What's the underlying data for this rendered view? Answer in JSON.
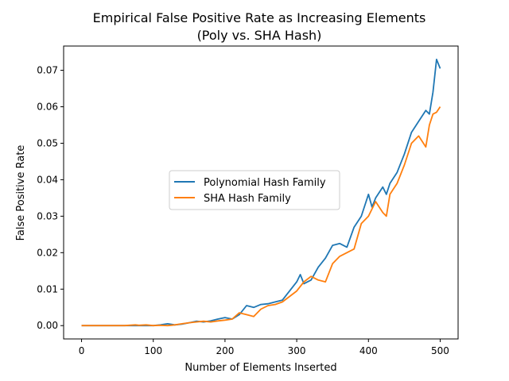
{
  "chart_data": {
    "type": "line",
    "title": "Empirical False Positive Rate as Increasing Elements",
    "subtitle": "(Poly vs. SHA Hash)",
    "xlabel": "Number of Elements Inserted",
    "ylabel": "False Positive Rate",
    "xlim": [
      -25,
      525
    ],
    "ylim": [
      -0.00365,
      0.07665
    ],
    "xticks": [
      0,
      100,
      200,
      300,
      400,
      500
    ],
    "xtick_labels": [
      "0",
      "100",
      "200",
      "300",
      "400",
      "500"
    ],
    "yticks": [
      0,
      0.01,
      0.02,
      0.03,
      0.04,
      0.05,
      0.06,
      0.07
    ],
    "ytick_labels": [
      "0.00",
      "0.01",
      "0.02",
      "0.03",
      "0.04",
      "0.05",
      "0.06",
      "0.07"
    ],
    "grid": false,
    "legend_position": "center-left",
    "series": [
      {
        "name": "Polynomial Hash Family",
        "color": "#1f77b4",
        "x": [
          0,
          20,
          40,
          60,
          80,
          100,
          110,
          120,
          130,
          140,
          150,
          160,
          170,
          180,
          190,
          200,
          210,
          220,
          230,
          240,
          250,
          260,
          270,
          280,
          290,
          300,
          305,
          310,
          320,
          330,
          340,
          350,
          360,
          370,
          380,
          390,
          400,
          405,
          410,
          420,
          425,
          430,
          440,
          450,
          460,
          470,
          480,
          485,
          490,
          495,
          500
        ],
        "y": [
          0,
          0,
          0,
          0,
          0,
          0,
          0.0002,
          0.0005,
          0.0002,
          0.0004,
          0.0008,
          0.0012,
          0.001,
          0.0013,
          0.0018,
          0.0022,
          0.0018,
          0.003,
          0.0055,
          0.005,
          0.0058,
          0.006,
          0.0065,
          0.007,
          0.0095,
          0.012,
          0.014,
          0.0115,
          0.0125,
          0.016,
          0.0185,
          0.022,
          0.0225,
          0.0215,
          0.027,
          0.03,
          0.036,
          0.0325,
          0.035,
          0.038,
          0.036,
          0.039,
          0.042,
          0.047,
          0.053,
          0.056,
          0.059,
          0.058,
          0.064,
          0.073,
          0.0705
        ]
      },
      {
        "name": "SHA Hash Family",
        "color": "#ff7f0e",
        "x": [
          0,
          20,
          40,
          60,
          75,
          80,
          90,
          100,
          110,
          120,
          130,
          140,
          150,
          160,
          170,
          180,
          190,
          200,
          210,
          220,
          230,
          240,
          250,
          260,
          270,
          280,
          290,
          300,
          310,
          320,
          330,
          340,
          350,
          360,
          370,
          380,
          390,
          400,
          410,
          420,
          425,
          430,
          440,
          450,
          460,
          470,
          480,
          485,
          490,
          495,
          500
        ],
        "y": [
          0,
          0,
          0,
          0,
          0.0002,
          0.0001,
          0.0002,
          0,
          0.0001,
          0,
          0.0002,
          0.0005,
          0.0008,
          0.001,
          0.0012,
          0.001,
          0.0013,
          0.0015,
          0.0018,
          0.0035,
          0.003,
          0.0025,
          0.0045,
          0.0055,
          0.0058,
          0.0065,
          0.008,
          0.0095,
          0.012,
          0.0135,
          0.0125,
          0.012,
          0.017,
          0.019,
          0.02,
          0.021,
          0.028,
          0.03,
          0.034,
          0.031,
          0.03,
          0.036,
          0.039,
          0.044,
          0.05,
          0.052,
          0.049,
          0.055,
          0.058,
          0.0585,
          0.06
        ]
      }
    ]
  }
}
